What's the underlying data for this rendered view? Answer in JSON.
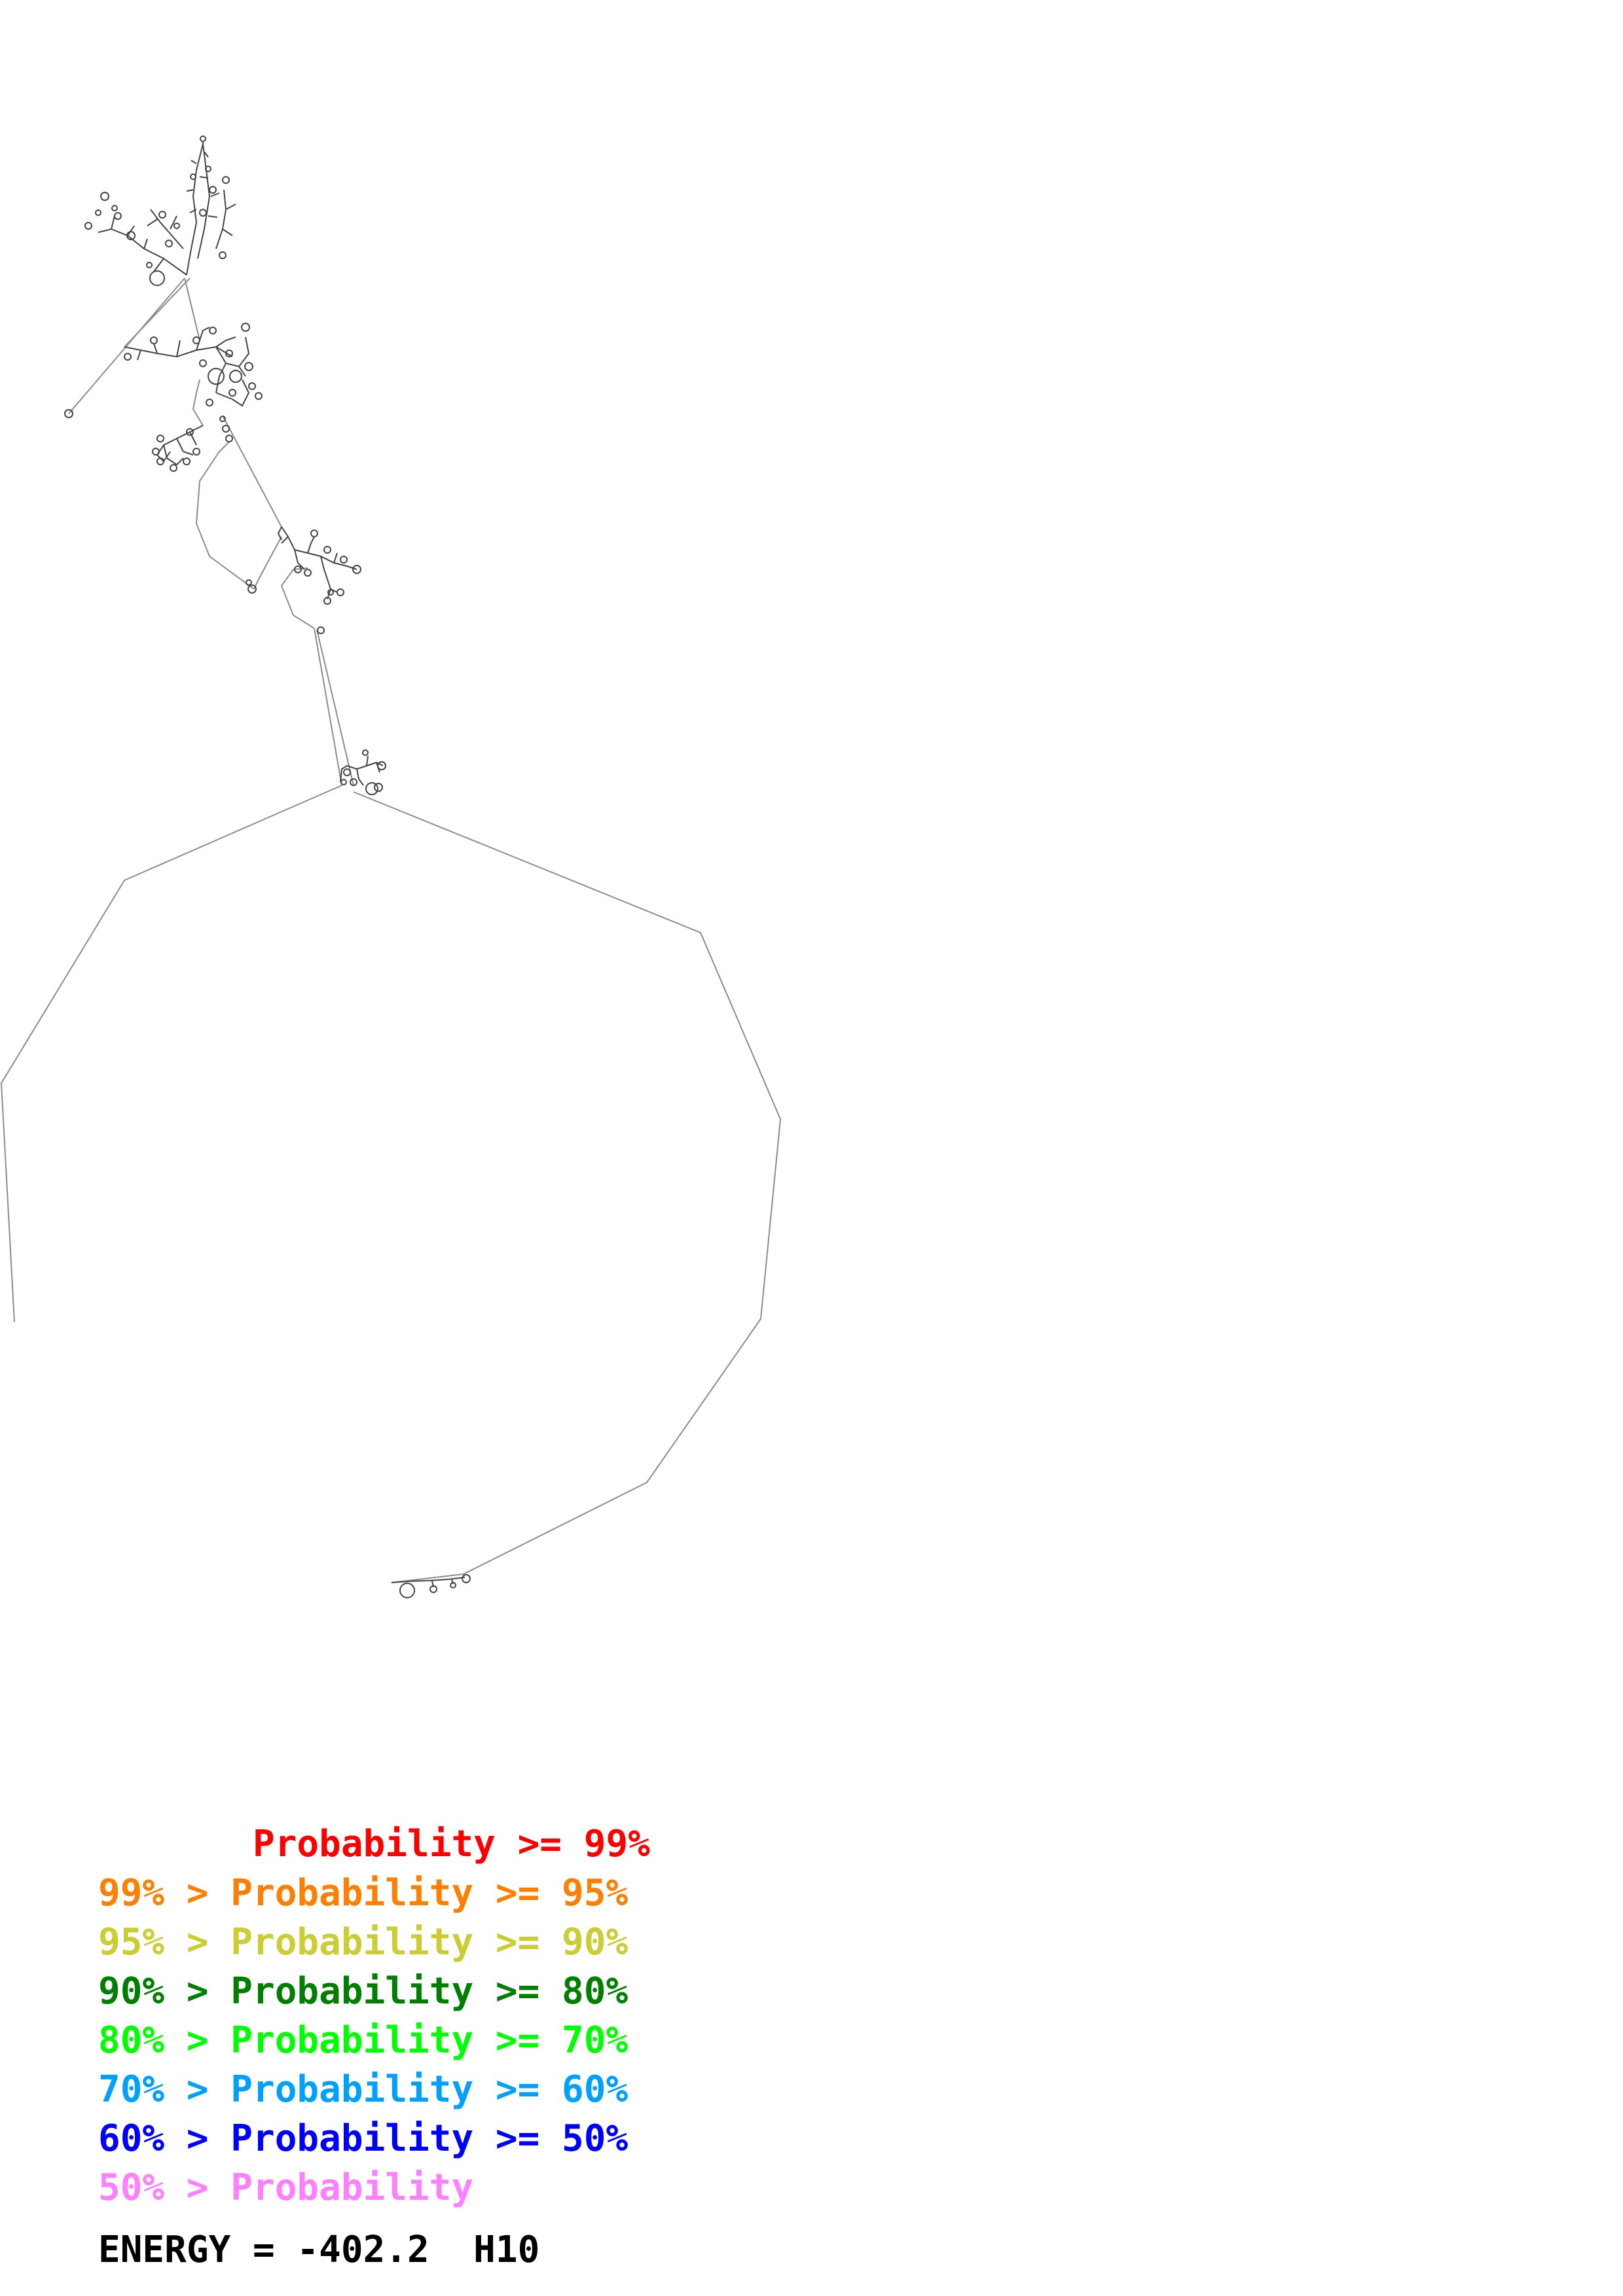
{
  "legend": {
    "items": [
      {
        "text": "       Probability >= 99%",
        "color": "#ff0000"
      },
      {
        "text": "99% > Probability >= 95%",
        "color": "#ff7f00"
      },
      {
        "text": "95% > Probability >= 90%",
        "color": "#cccc33"
      },
      {
        "text": "90% > Probability >= 80%",
        "color": "#007f00"
      },
      {
        "text": "80% > Probability >= 70%",
        "color": "#00ff00"
      },
      {
        "text": "70% > Probability >= 60%",
        "color": "#00a0ff"
      },
      {
        "text": "60% > Probability >= 50%",
        "color": "#0000ff"
      },
      {
        "text": "50% > Probability",
        "color": "#ff80ff"
      }
    ]
  },
  "energy": {
    "label": "ENERGY = -402.2  H10"
  },
  "diagram": {
    "line_color": "#8c8c8c"
  }
}
